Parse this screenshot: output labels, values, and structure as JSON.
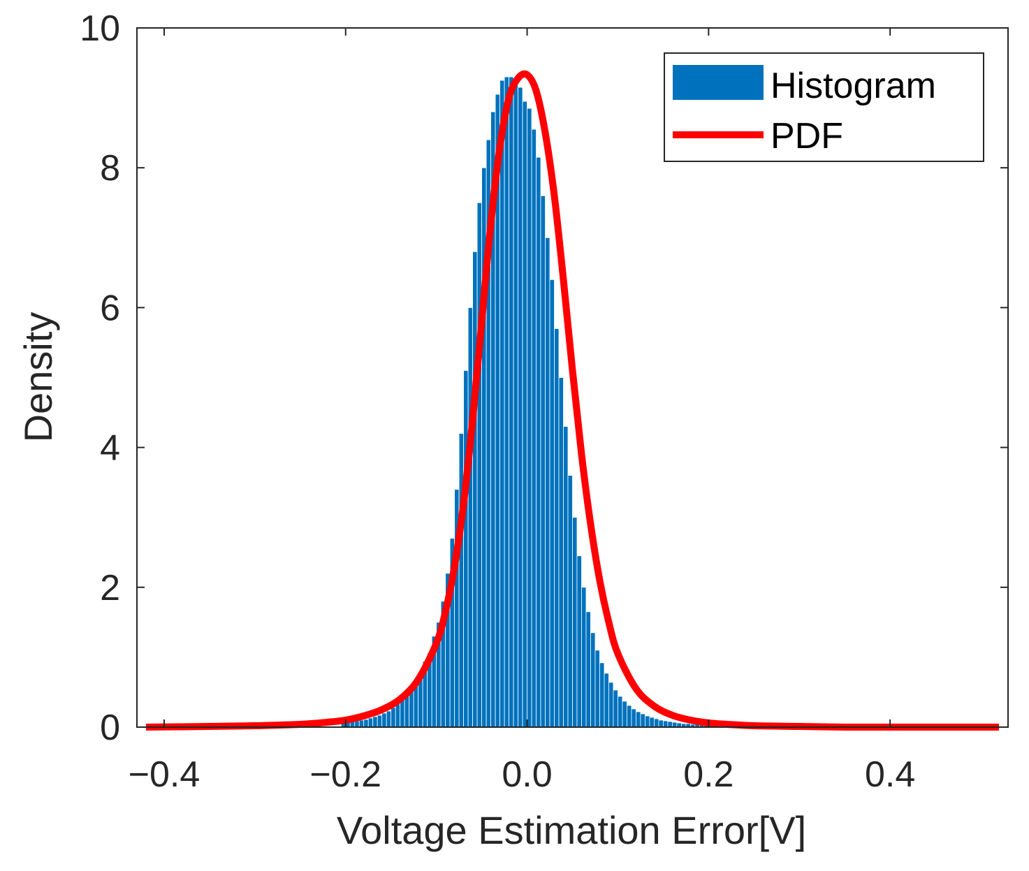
{
  "chart_data": {
    "type": "bar",
    "title": "",
    "xlabel": "Voltage Estimation Error[V]",
    "ylabel": "Density",
    "xlim": [
      -0.43,
      0.53
    ],
    "ylim": [
      0,
      10
    ],
    "xticks": [
      -0.4,
      -0.2,
      0.0,
      0.2,
      0.4
    ],
    "xtick_labels": [
      "−0.4",
      "−0.2",
      "0.0",
      "0.2",
      "0.4"
    ],
    "yticks": [
      0,
      2,
      4,
      6,
      8,
      10
    ],
    "ytick_labels": [
      "0",
      "2",
      "4",
      "6",
      "8",
      "10"
    ],
    "grid": false,
    "legend_position": "top-right",
    "legend": [
      "Histogram",
      "PDF"
    ],
    "series": [
      {
        "name": "Histogram",
        "type": "bar",
        "color": "#0072BD",
        "edge_color": "#ffffff",
        "bin_width": 0.005,
        "bin_centers": [
          -0.2025,
          -0.1975,
          -0.1925,
          -0.1875,
          -0.1825,
          -0.1775,
          -0.1725,
          -0.1675,
          -0.1625,
          -0.1575,
          -0.1525,
          -0.1475,
          -0.1425,
          -0.1375,
          -0.1325,
          -0.1275,
          -0.1225,
          -0.1175,
          -0.1125,
          -0.1075,
          -0.1025,
          -0.0975,
          -0.0925,
          -0.0875,
          -0.0825,
          -0.0775,
          -0.0725,
          -0.0675,
          -0.0625,
          -0.0575,
          -0.0525,
          -0.0475,
          -0.0425,
          -0.0375,
          -0.0325,
          -0.0275,
          -0.0225,
          -0.0175,
          -0.0125,
          -0.0075,
          -0.0025,
          0.0025,
          0.0075,
          0.0125,
          0.0175,
          0.0225,
          0.0275,
          0.0325,
          0.0375,
          0.0425,
          0.0475,
          0.0525,
          0.0575,
          0.0625,
          0.0675,
          0.0725,
          0.0775,
          0.0825,
          0.0875,
          0.0925,
          0.0975,
          0.1025,
          0.1075,
          0.1125,
          0.1175,
          0.1225,
          0.1275,
          0.1325,
          0.1375,
          0.1425,
          0.1475,
          0.1525,
          0.1575,
          0.1625,
          0.1675,
          0.1725,
          0.1775,
          0.1825,
          0.1875,
          0.1925,
          0.1975,
          0.2025
        ],
        "values": [
          0.06,
          0.07,
          0.08,
          0.09,
          0.1,
          0.11,
          0.13,
          0.15,
          0.17,
          0.2,
          0.23,
          0.28,
          0.33,
          0.4,
          0.47,
          0.56,
          0.66,
          0.79,
          0.94,
          1.06,
          1.3,
          1.5,
          1.8,
          2.2,
          2.7,
          3.4,
          4.2,
          5.1,
          6.0,
          6.8,
          7.5,
          8.0,
          8.4,
          8.8,
          9.05,
          9.25,
          9.3,
          9.3,
          9.25,
          9.15,
          8.95,
          8.85,
          8.55,
          8.15,
          7.6,
          7.0,
          6.4,
          5.7,
          5.0,
          4.3,
          3.6,
          3.0,
          2.45,
          2.0,
          1.65,
          1.35,
          1.1,
          0.92,
          0.77,
          0.64,
          0.53,
          0.44,
          0.37,
          0.31,
          0.26,
          0.22,
          0.19,
          0.16,
          0.14,
          0.12,
          0.1,
          0.09,
          0.08,
          0.07,
          0.06,
          0.05,
          0.05,
          0.04,
          0.04,
          0.03,
          0.03,
          0.02
        ]
      },
      {
        "name": "PDF",
        "type": "line",
        "color": "#FF0000",
        "x": [
          -0.42,
          -0.35,
          -0.3,
          -0.25,
          -0.22,
          -0.2,
          -0.18,
          -0.16,
          -0.14,
          -0.12,
          -0.1,
          -0.09,
          -0.08,
          -0.07,
          -0.06,
          -0.05,
          -0.04,
          -0.03,
          -0.02,
          -0.01,
          0.0,
          0.01,
          0.02,
          0.03,
          0.04,
          0.05,
          0.06,
          0.07,
          0.08,
          0.09,
          0.1,
          0.12,
          0.14,
          0.16,
          0.18,
          0.2,
          0.22,
          0.25,
          0.3,
          0.35,
          0.4,
          0.45,
          0.52
        ],
        "y": [
          0.0,
          0.01,
          0.02,
          0.04,
          0.07,
          0.1,
          0.16,
          0.25,
          0.4,
          0.68,
          1.2,
          1.65,
          2.3,
          3.2,
          4.4,
          5.8,
          7.2,
          8.3,
          9.0,
          9.28,
          9.33,
          9.1,
          8.5,
          7.6,
          6.4,
          5.1,
          3.9,
          2.9,
          2.1,
          1.5,
          1.05,
          0.55,
          0.3,
          0.17,
          0.1,
          0.06,
          0.04,
          0.02,
          0.01,
          0.0,
          0.0,
          0.0,
          0.0
        ]
      }
    ]
  }
}
